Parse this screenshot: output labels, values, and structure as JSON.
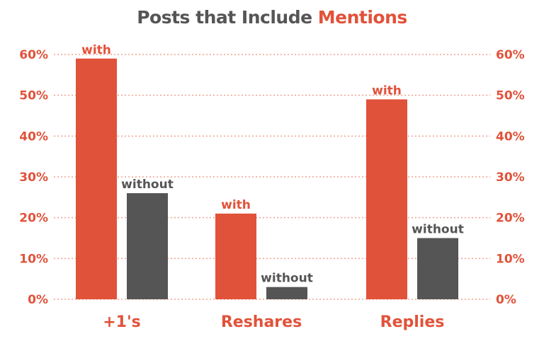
{
  "chart_data": {
    "type": "bar",
    "title_prefix": "Posts that Include ",
    "title_highlight": "Mentions",
    "categories": [
      "+1's",
      "Reshares",
      "Replies"
    ],
    "series": [
      {
        "name": "with",
        "color": "#e1523a",
        "label_color": "#e1523a",
        "values": [
          59,
          21,
          49
        ]
      },
      {
        "name": "without",
        "color": "#555555",
        "label_color": "#555555",
        "values": [
          26,
          3,
          15
        ]
      }
    ],
    "y_ticks": [
      "0%",
      "10%",
      "20%",
      "30%",
      "40%",
      "50%",
      "60%"
    ],
    "ylim": [
      0,
      60
    ],
    "grid": true,
    "grid_color": "#f0a090",
    "axis_labels_on": "left-and-right"
  }
}
